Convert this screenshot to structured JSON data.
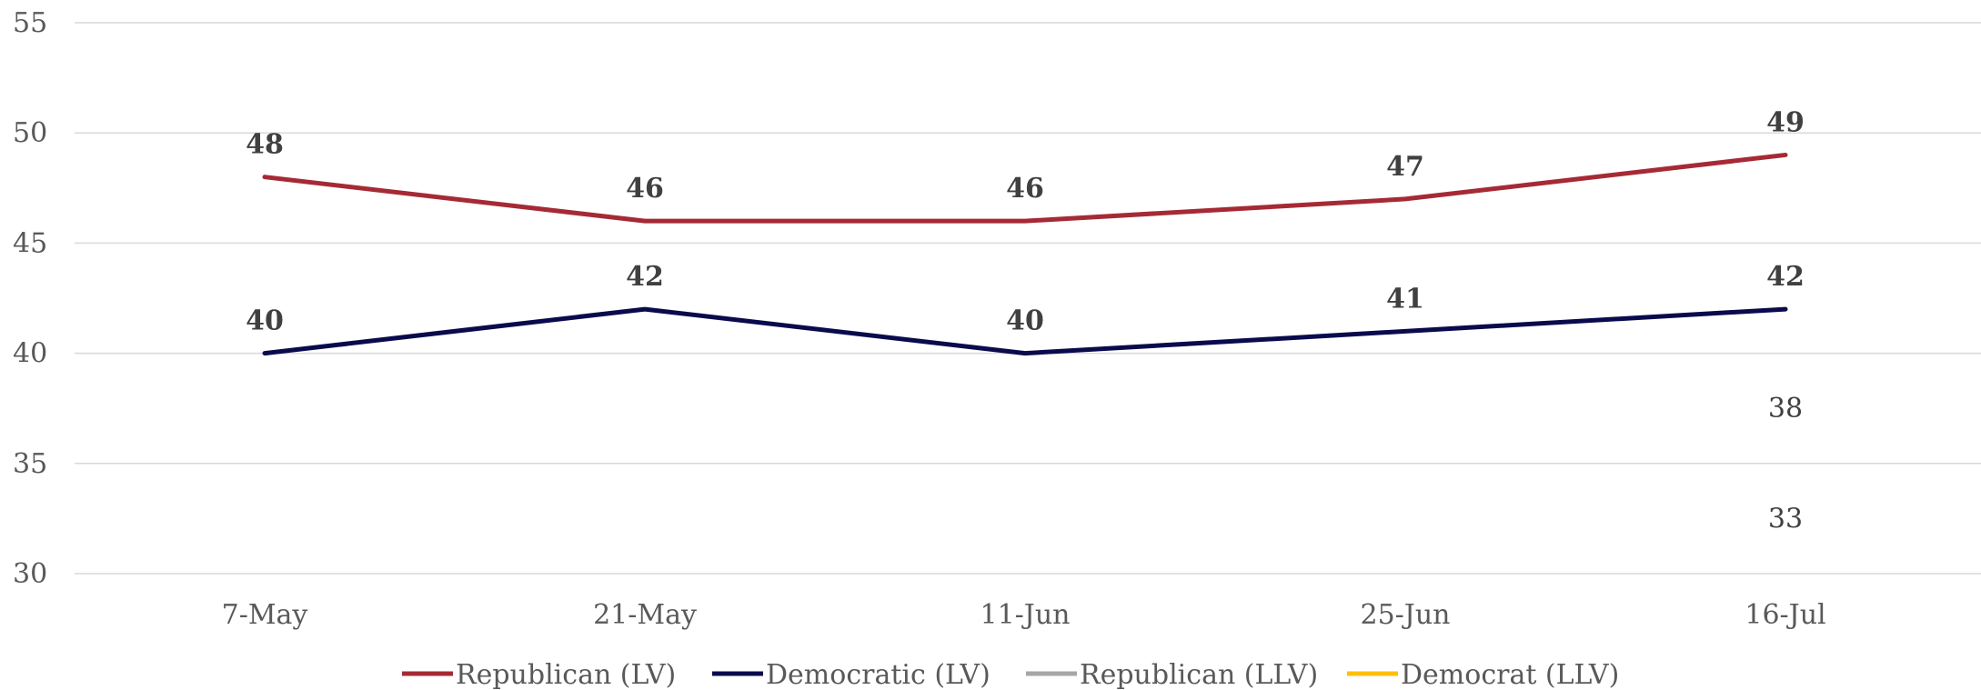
{
  "chart_data": {
    "type": "line",
    "categories": [
      "7-May",
      "21-May",
      "11-Jun",
      "25-Jun",
      "16-Jul"
    ],
    "ylim": [
      30,
      55
    ],
    "yticks": [
      30,
      35,
      40,
      45,
      50,
      55
    ],
    "grid": true,
    "legend_position": "bottom",
    "series": [
      {
        "name": "Republican (LV)",
        "color": "#A52A35",
        "values": [
          48,
          46,
          46,
          47,
          49
        ],
        "labels_bold": true
      },
      {
        "name": "Democratic (LV)",
        "color": "#0A0A4D",
        "values": [
          40,
          42,
          40,
          41,
          42
        ],
        "labels_bold": true
      },
      {
        "name": "Republican (LLV)",
        "color": "#A6A6A6",
        "values": [
          null,
          null,
          null,
          null,
          38
        ],
        "labels_bold": false
      },
      {
        "name": "Democrat (LLV)",
        "color": "#FFC000",
        "values": [
          null,
          null,
          null,
          null,
          33
        ],
        "labels_bold": false
      }
    ]
  }
}
